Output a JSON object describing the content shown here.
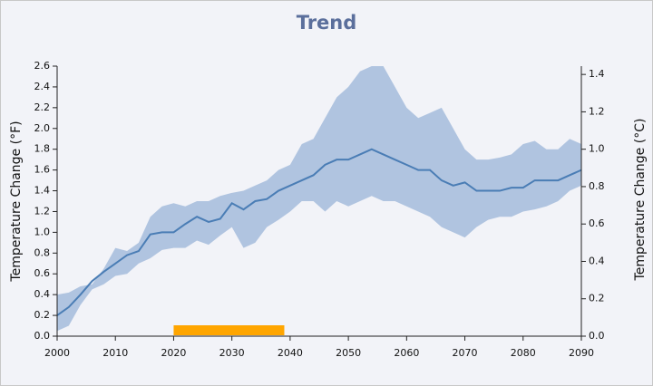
{
  "chart_data": {
    "type": "line",
    "title": "Trend",
    "y_label": "Temperature Change (°F)",
    "y2_label": "Temperature Change (°C)",
    "x": [
      2000,
      2002,
      2004,
      2006,
      2008,
      2010,
      2012,
      2014,
      2016,
      2018,
      2020,
      2022,
      2024,
      2026,
      2028,
      2030,
      2032,
      2034,
      2036,
      2038,
      2040,
      2042,
      2044,
      2046,
      2048,
      2050,
      2052,
      2054,
      2056,
      2058,
      2060,
      2062,
      2064,
      2066,
      2068,
      2070,
      2072,
      2074,
      2076,
      2078,
      2080,
      2082,
      2084,
      2086,
      2088,
      2090
    ],
    "series": [
      {
        "color": "#4a7db5",
        "values": [
          0.2,
          0.28,
          0.4,
          0.53,
          0.62,
          0.7,
          0.78,
          0.82,
          0.98,
          1.0,
          1.0,
          1.08,
          1.15,
          1.1,
          1.13,
          1.28,
          1.22,
          1.3,
          1.32,
          1.4,
          1.45,
          1.5,
          1.55,
          1.65,
          1.7,
          1.7,
          1.75,
          1.8,
          1.75,
          1.7,
          1.65,
          1.6,
          1.6,
          1.5,
          1.45,
          1.48,
          1.4,
          1.4,
          1.4,
          1.43,
          1.43,
          1.5,
          1.5,
          1.5,
          1.55,
          1.6
        ]
      }
    ],
    "band": {
      "color": "#b0c4e0",
      "high": [
        0.4,
        0.42,
        0.48,
        0.5,
        0.65,
        0.85,
        0.82,
        0.9,
        1.15,
        1.25,
        1.28,
        1.25,
        1.3,
        1.3,
        1.35,
        1.38,
        1.4,
        1.45,
        1.5,
        1.6,
        1.65,
        1.85,
        1.9,
        2.1,
        2.3,
        2.4,
        2.55,
        2.6,
        2.6,
        2.4,
        2.2,
        2.1,
        2.15,
        2.2,
        2.0,
        1.8,
        1.7,
        1.7,
        1.72,
        1.75,
        1.85,
        1.88,
        1.8,
        1.8,
        1.9,
        1.85
      ],
      "low": [
        0.05,
        0.1,
        0.3,
        0.45,
        0.5,
        0.58,
        0.6,
        0.7,
        0.75,
        0.83,
        0.85,
        0.85,
        0.92,
        0.88,
        0.97,
        1.05,
        0.85,
        0.9,
        1.05,
        1.12,
        1.2,
        1.3,
        1.3,
        1.2,
        1.3,
        1.25,
        1.3,
        1.35,
        1.3,
        1.3,
        1.25,
        1.2,
        1.15,
        1.05,
        1.0,
        0.95,
        1.05,
        1.12,
        1.15,
        1.15,
        1.2,
        1.22,
        1.25,
        1.3,
        1.4,
        1.45
      ]
    },
    "highlight": {
      "start": 2020,
      "end": 2039,
      "color": "#ffa500"
    },
    "xlim": [
      2000,
      2090
    ],
    "xticks": [
      2000,
      2010,
      2020,
      2030,
      2040,
      2050,
      2060,
      2070,
      2080,
      2090
    ],
    "ylim": [
      0,
      2.6
    ],
    "yticks": [
      {
        "value": 0,
        "label": "0.0"
      },
      0.2,
      0.4,
      0.6,
      0.8,
      {
        "value": 1,
        "label": "1.0"
      },
      1.2,
      1.4,
      1.6,
      1.8,
      {
        "value": 2,
        "label": "2.0"
      },
      2.2,
      2.4,
      2.6
    ],
    "y2lim": [
      0,
      1.4444
    ],
    "y2ticks": [
      {
        "value": 0,
        "label": "0.0"
      },
      0.2,
      0.4,
      0.6,
      0.8,
      {
        "value": 1,
        "label": "1.0"
      },
      1.2,
      1.4
    ]
  }
}
